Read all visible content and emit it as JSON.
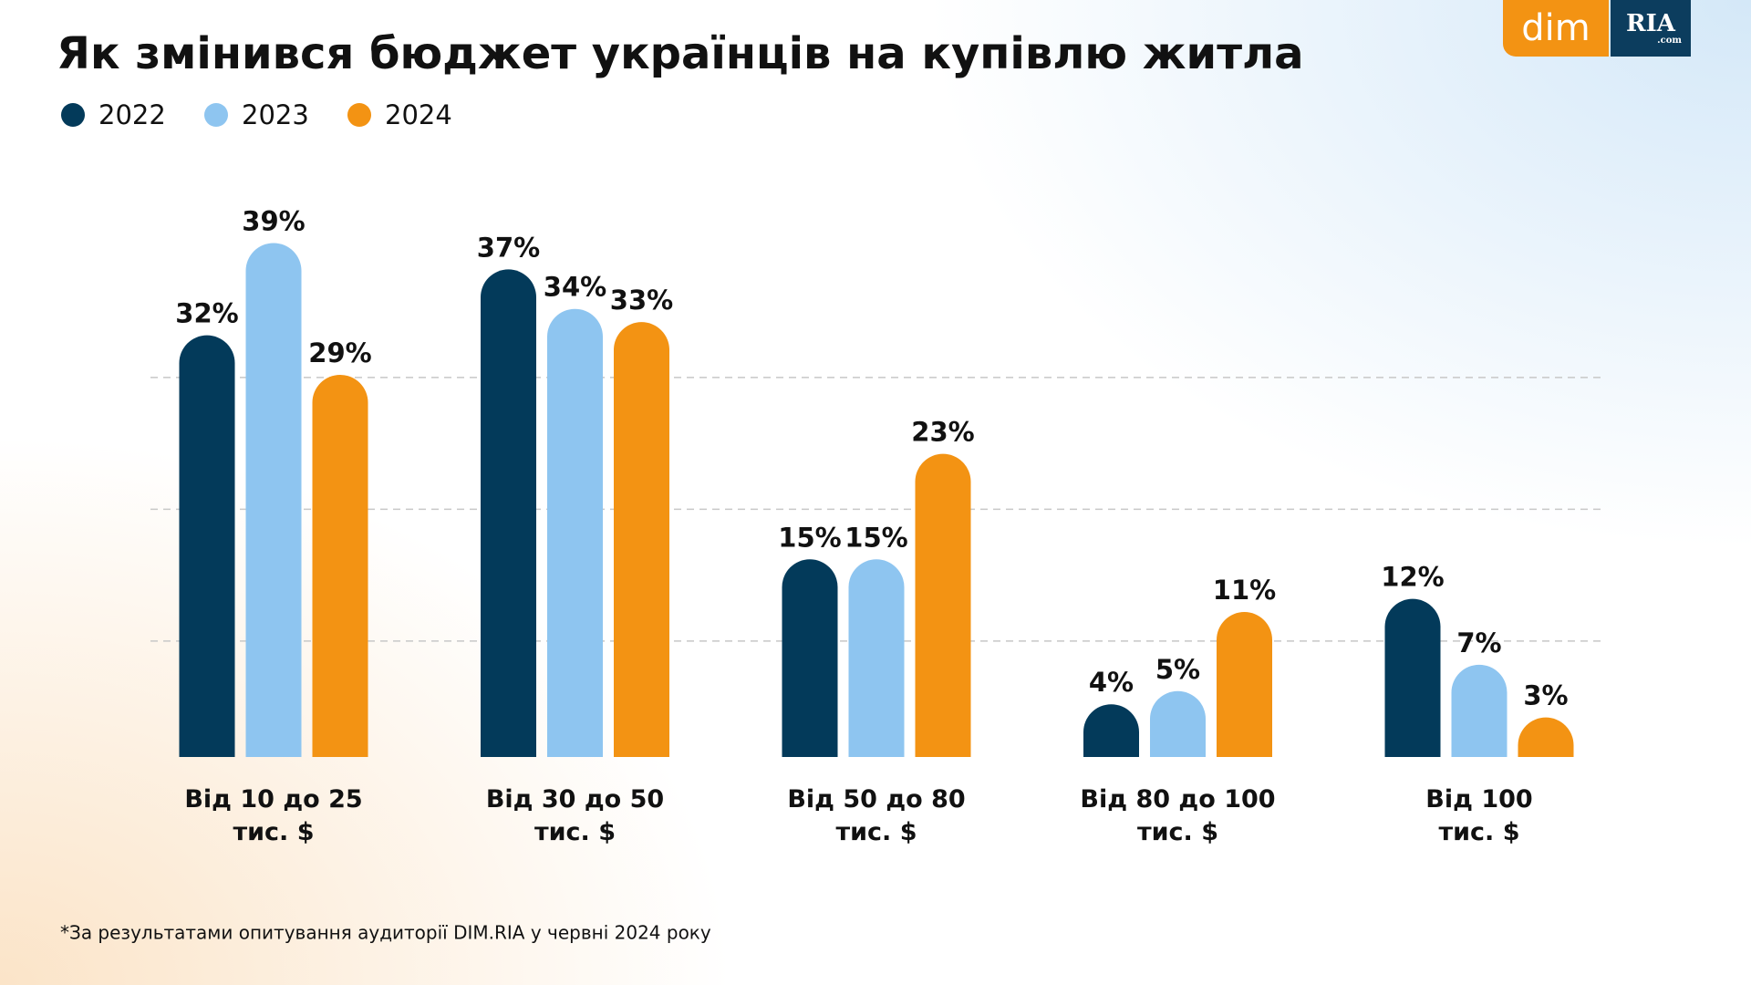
{
  "logo": {
    "left": "dim",
    "right": "RIA",
    "right_small": ".com"
  },
  "chart_data": {
    "type": "bar",
    "title": "Як змінився бюджет українців на купівлю житла",
    "categories": [
      "Від 10 до 25\nтис. $",
      "Від 30 до 50\nтис. $",
      "Від 50 до 80\nтис. $",
      "Від 80 до 100\nтис. $",
      "Від 100\nтис. $"
    ],
    "series": [
      {
        "name": "2022",
        "color": "#033a5a",
        "values": [
          32,
          37,
          15,
          4,
          12
        ],
        "value_labels": [
          "32%",
          "37%",
          "15%",
          "4%",
          "12%"
        ]
      },
      {
        "name": "2023",
        "color": "#8ec5f0",
        "values": [
          39,
          34,
          15,
          5,
          7
        ],
        "value_labels": [
          "39%",
          "34%",
          "15%",
          "5%",
          "7%"
        ]
      },
      {
        "name": "2024",
        "color": "#f39313",
        "values": [
          29,
          33,
          23,
          11,
          3
        ],
        "value_labels": [
          "29%",
          "33%",
          "23%",
          "11%",
          "3%"
        ]
      }
    ],
    "ylim": [
      0,
      40
    ],
    "grid": true,
    "footnote": "*За результатами опитування аудиторії DIM.RIA у червні 2024 року"
  }
}
